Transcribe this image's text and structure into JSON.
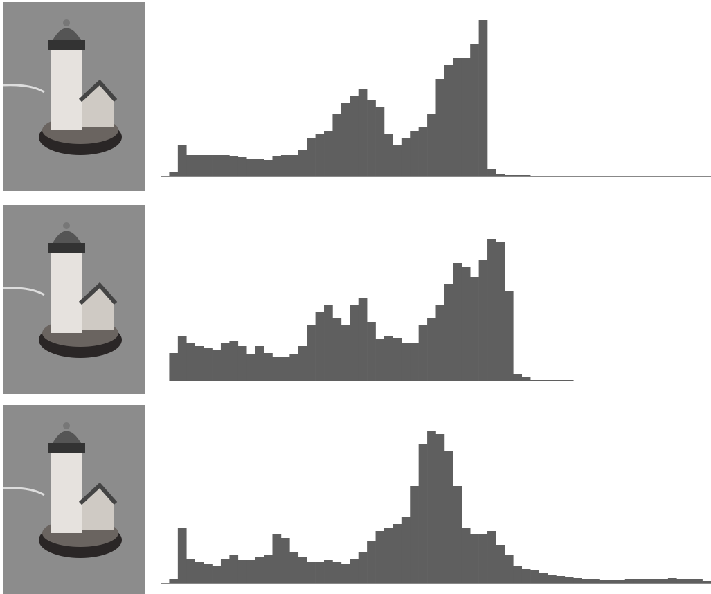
{
  "chart_data": [
    {
      "type": "histogram",
      "color": "#5f5f5f",
      "ylim": [
        0,
        240
      ],
      "bins": [
        0,
        4,
        8,
        12,
        16,
        20,
        24,
        28,
        32,
        36,
        40,
        44,
        48,
        52,
        56,
        60,
        64,
        68,
        72,
        76,
        80,
        84,
        88,
        92,
        96,
        100,
        104,
        108,
        112,
        116,
        120,
        124,
        128,
        132,
        136,
        140,
        144,
        148,
        152,
        156,
        160,
        164,
        168,
        172,
        176,
        180,
        184,
        188,
        192,
        196,
        200,
        204,
        208,
        212,
        216,
        220,
        224,
        228,
        232,
        236,
        240,
        244,
        248,
        252,
        256
      ],
      "counts": [
        0,
        5,
        45,
        30,
        30,
        30,
        30,
        30,
        28,
        27,
        25,
        24,
        23,
        28,
        30,
        30,
        38,
        55,
        60,
        65,
        90,
        105,
        115,
        125,
        110,
        100,
        60,
        45,
        55,
        65,
        70,
        90,
        140,
        160,
        170,
        170,
        190,
        225,
        10,
        2,
        1,
        1,
        1,
        0,
        0,
        0,
        0,
        0,
        0,
        0,
        0,
        0,
        0,
        0,
        0,
        0,
        0,
        0,
        0,
        0,
        0,
        0,
        0,
        0
      ]
    },
    {
      "type": "histogram",
      "color": "#5f5f5f",
      "ylim": [
        0,
        240
      ],
      "bins": [
        0,
        4,
        8,
        12,
        16,
        20,
        24,
        28,
        32,
        36,
        40,
        44,
        48,
        52,
        56,
        60,
        64,
        68,
        72,
        76,
        80,
        84,
        88,
        92,
        96,
        100,
        104,
        108,
        112,
        116,
        120,
        124,
        128,
        132,
        136,
        140,
        144,
        148,
        152,
        156,
        160,
        164,
        168,
        172,
        176,
        180,
        184,
        188,
        192,
        196,
        200,
        204,
        208,
        212,
        216,
        220,
        224,
        228,
        232,
        236,
        240,
        244,
        248,
        252,
        256
      ],
      "counts": [
        0,
        40,
        65,
        55,
        50,
        48,
        45,
        55,
        57,
        50,
        38,
        50,
        40,
        35,
        35,
        38,
        50,
        80,
        100,
        110,
        90,
        80,
        110,
        120,
        85,
        60,
        65,
        62,
        55,
        55,
        80,
        90,
        110,
        140,
        170,
        165,
        150,
        175,
        205,
        200,
        130,
        10,
        5,
        1,
        1,
        1,
        1,
        1,
        0,
        0,
        0,
        0,
        0,
        0,
        0,
        0,
        0,
        0,
        0,
        0,
        0,
        0,
        0,
        0
      ]
    },
    {
      "type": "histogram",
      "color": "#5f5f5f",
      "ylim": [
        0,
        240
      ],
      "bins": [
        0,
        4,
        8,
        12,
        16,
        20,
        24,
        28,
        32,
        36,
        40,
        44,
        48,
        52,
        56,
        60,
        64,
        68,
        72,
        76,
        80,
        84,
        88,
        92,
        96,
        100,
        104,
        108,
        112,
        116,
        120,
        124,
        128,
        132,
        136,
        140,
        144,
        148,
        152,
        156,
        160,
        164,
        168,
        172,
        176,
        180,
        184,
        188,
        192,
        196,
        200,
        204,
        208,
        212,
        216,
        220,
        224,
        228,
        232,
        236,
        240,
        244,
        248,
        252,
        256
      ],
      "counts": [
        0,
        5,
        80,
        35,
        30,
        28,
        25,
        35,
        40,
        33,
        33,
        38,
        40,
        70,
        65,
        45,
        38,
        30,
        30,
        33,
        30,
        28,
        35,
        45,
        60,
        75,
        80,
        85,
        95,
        140,
        200,
        220,
        215,
        190,
        140,
        80,
        70,
        70,
        75,
        55,
        40,
        25,
        20,
        18,
        15,
        12,
        10,
        8,
        7,
        6,
        5,
        4,
        4,
        4,
        5,
        5,
        5,
        6,
        6,
        7,
        6,
        6,
        5,
        3
      ]
    }
  ]
}
